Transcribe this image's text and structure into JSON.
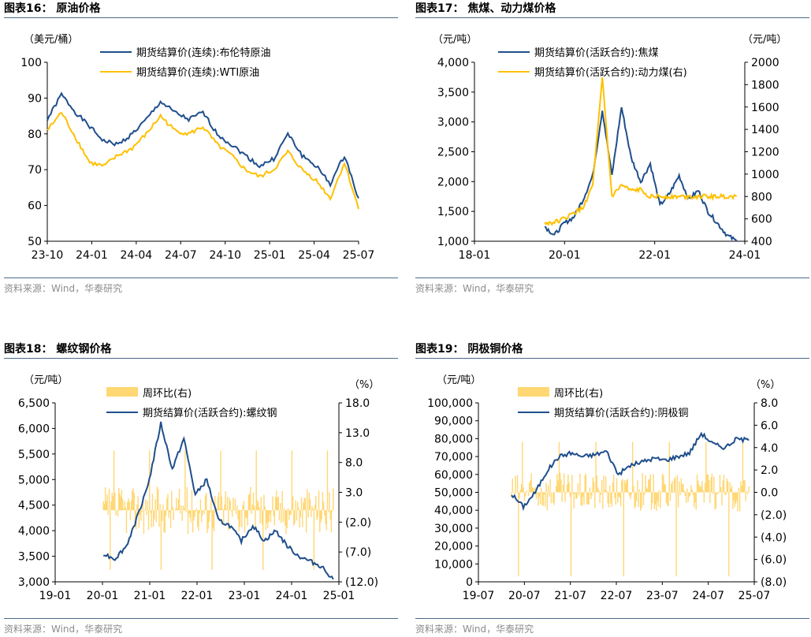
{
  "colors": {
    "navy": "#1f4e8c",
    "gold": "#ffc000",
    "lightgold": "#ffd773",
    "rule": "#4a6b8a"
  },
  "source": "资料来源：Wind，华泰研究",
  "chart_data": [
    {
      "type": "line",
      "title": "图表16：  原油价格",
      "yunit_left": "（美元/桶）",
      "ylim": [
        50,
        100
      ],
      "yticks": [
        "100",
        "90",
        "80",
        "70",
        "60",
        "50"
      ],
      "xticks": [
        "23-10",
        "24-01",
        "24-04",
        "24-07",
        "24-10",
        "25-01",
        "25-04",
        "25-07"
      ],
      "series": [
        {
          "name": "期货结算价(连续):布伦特原油",
          "color": "#1f4e8c",
          "x": [
            0,
            1,
            2,
            3,
            4,
            5,
            6,
            7,
            8,
            9,
            10,
            11,
            12,
            13,
            14,
            15,
            16,
            17,
            18,
            19,
            20,
            21,
            22
          ],
          "values": [
            84,
            91,
            86,
            82,
            78,
            77,
            80,
            84,
            89,
            86,
            84,
            86,
            80,
            77,
            74,
            71,
            73,
            80,
            74,
            71,
            66,
            74,
            62
          ]
        },
        {
          "name": "期货结算价(连续):WTI原油",
          "color": "#ffc000",
          "x": [
            0,
            1,
            2,
            3,
            4,
            5,
            6,
            7,
            8,
            9,
            10,
            11,
            12,
            13,
            14,
            15,
            16,
            17,
            18,
            19,
            20,
            21,
            22
          ],
          "values": [
            81,
            86,
            79,
            72,
            71,
            74,
            76,
            80,
            85,
            81,
            80,
            82,
            77,
            74,
            70,
            68,
            70,
            75,
            70,
            67,
            62,
            72,
            59
          ]
        }
      ]
    },
    {
      "type": "line",
      "title": "图表17：  焦煤、动力煤价格",
      "yunit_left": "（元/吨）",
      "yunit_right": "（元/吨）",
      "ylim": [
        1000,
        4000
      ],
      "ylim_right": [
        400,
        2000
      ],
      "yticks": [
        "4,000",
        "3,500",
        "3,000",
        "2,500",
        "2,000",
        "1,500",
        "1,000"
      ],
      "yticks_right": [
        "2000",
        "1800",
        "1600",
        "1400",
        "1200",
        "1000",
        "800",
        "600",
        "400"
      ],
      "xticks": [
        "18-01",
        "20-01",
        "22-01",
        "24-01"
      ],
      "series": [
        {
          "name": "期货结算价(活跃合约):焦煤",
          "color": "#1f4e8c",
          "x": [
            0,
            1,
            2,
            3,
            4,
            5,
            6,
            7,
            8,
            9,
            10,
            11,
            12,
            13,
            14,
            15,
            16,
            17,
            18,
            19,
            20
          ],
          "values": [
            1250,
            1100,
            1300,
            1400,
            1700,
            2100,
            3200,
            2100,
            3250,
            2400,
            2000,
            2300,
            1600,
            1800,
            2100,
            1700,
            1850,
            1500,
            1300,
            1100,
            1000
          ]
        },
        {
          "name": "期货结算价(活跃合约):动力煤(右)",
          "color": "#ffc000",
          "x": [
            0,
            1,
            2,
            3,
            4,
            5,
            6,
            7,
            8,
            9,
            10,
            11,
            12,
            13,
            14,
            15,
            16,
            17,
            18,
            19,
            20
          ],
          "values": [
            560,
            570,
            600,
            650,
            700,
            900,
            1850,
            800,
            900,
            850,
            860,
            800,
            800,
            800,
            800,
            800,
            800,
            800,
            800,
            800,
            800
          ]
        }
      ]
    },
    {
      "type": "bar+line",
      "title": "图表18：  螺纹钢价格",
      "yunit_left": "（元/吨）",
      "yunit_right": "（%）",
      "ylim": [
        3000,
        6500
      ],
      "ylim_right": [
        -12,
        18
      ],
      "yticks": [
        "6,500",
        "6,000",
        "5,500",
        "5,000",
        "4,500",
        "4,000",
        "3,500",
        "3,000"
      ],
      "yticks_right": [
        "18.0",
        "13.0",
        "8.0",
        "3.0",
        "(2.0)",
        "(7.0)",
        "(12.0)"
      ],
      "xticks": [
        "19-01",
        "20-01",
        "21-01",
        "22-01",
        "23-01",
        "24-01",
        "25-01"
      ],
      "series": [
        {
          "name": "周环比(右)",
          "color": "#ffd773",
          "kind": "bar"
        },
        {
          "name": "期货结算价(活跃合约):螺纹钢",
          "color": "#1f4e8c",
          "kind": "line",
          "x": [
            0,
            1,
            2,
            3,
            4,
            5,
            6,
            7,
            8,
            9,
            10,
            11,
            12,
            13,
            14,
            15,
            16,
            17,
            18,
            19,
            20
          ],
          "values": [
            3550,
            3450,
            3700,
            4300,
            5000,
            6100,
            5200,
            5800,
            4700,
            5000,
            4200,
            4100,
            3800,
            4100,
            3800,
            4000,
            3700,
            3500,
            3400,
            3300,
            3050
          ]
        }
      ]
    },
    {
      "type": "bar+line",
      "title": "图表19：  阴极铜价格",
      "yunit_left": "（元/吨）",
      "yunit_right": "（%）",
      "ylim": [
        0,
        100000
      ],
      "ylim_right": [
        -8,
        8
      ],
      "yticks": [
        "100,000",
        "90,000",
        "80,000",
        "70,000",
        "60,000",
        "50,000",
        "40,000",
        "30,000",
        "20,000",
        "10,000",
        "0"
      ],
      "yticks_right": [
        "8.0",
        "6.0",
        "4.0",
        "2.0",
        "0.0",
        "(2.0)",
        "(4.0)",
        "(6.0)",
        "(8.0)"
      ],
      "xticks": [
        "19-07",
        "20-07",
        "21-07",
        "22-07",
        "23-07",
        "24-07",
        "25-07"
      ],
      "series": [
        {
          "name": "周环比(右)",
          "color": "#ffd773",
          "kind": "bar"
        },
        {
          "name": "期货结算价(活跃合约):阴极铜",
          "color": "#1f4e8c",
          "kind": "line",
          "x": [
            0,
            1,
            2,
            3,
            4,
            5,
            6,
            7,
            8,
            9,
            10,
            11,
            12,
            13,
            14,
            15,
            16,
            17,
            18,
            19,
            20
          ],
          "values": [
            49000,
            42000,
            50000,
            62000,
            70000,
            72000,
            70000,
            71000,
            73000,
            60000,
            65000,
            67000,
            69000,
            68000,
            70000,
            72000,
            83000,
            77000,
            75000,
            80000,
            79000
          ]
        }
      ]
    }
  ]
}
